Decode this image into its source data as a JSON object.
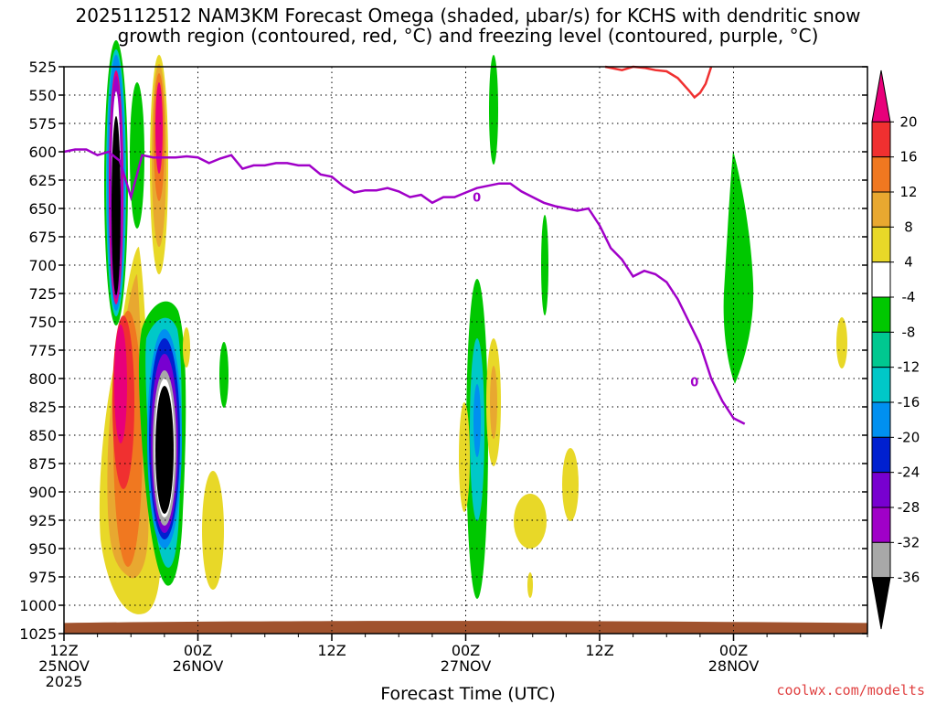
{
  "header": {
    "title_line1": "2025112512 NAM3KM Forecast Omega (shaded, µbar/s) for KCHS with dendritic snow",
    "title_line2": "growth region (contoured, red, °C) and freezing level (contoured, purple, °C)"
  },
  "footer": {
    "xlabel": "Forecast Time (UTC)",
    "credit": "coolwx.com/modelts"
  },
  "chart_data": {
    "type": "heatmap",
    "x_range_hours": [
      0,
      72
    ],
    "x_ticks": [
      {
        "hour": 0,
        "lines": [
          "12Z",
          "25NOV",
          "2025"
        ]
      },
      {
        "hour": 12,
        "lines": [
          "00Z",
          "26NOV"
        ]
      },
      {
        "hour": 24,
        "lines": [
          "12Z"
        ]
      },
      {
        "hour": 36,
        "lines": [
          "00Z",
          "27NOV"
        ]
      },
      {
        "hour": 48,
        "lines": [
          "12Z"
        ]
      },
      {
        "hour": 60,
        "lines": [
          "00Z",
          "28NOV"
        ]
      }
    ],
    "y_range_mb": [
      525,
      1025
    ],
    "y_ticks": [
      525,
      550,
      575,
      600,
      625,
      650,
      675,
      700,
      725,
      750,
      775,
      800,
      825,
      850,
      875,
      900,
      925,
      950,
      975,
      1000,
      1025
    ],
    "grid": true,
    "colorbar": {
      "position": "right",
      "labels": [
        20,
        16,
        12,
        8,
        4,
        -4,
        -8,
        -12,
        -16,
        -20,
        -24,
        -28,
        -32,
        -36
      ],
      "colors": [
        "#e8007a",
        "#f03030",
        "#f07820",
        "#e8a830",
        "#e8d828",
        "#ffffff",
        "#00c800",
        "#00c890",
        "#00c8c8",
        "#0090f0",
        "#0020d0",
        "#7800d0",
        "#a000c8",
        "#a8a8a8",
        "#000000"
      ]
    },
    "freezing_level": {
      "color": "#a000c8",
      "label": "0",
      "points": [
        [
          0,
          600
        ],
        [
          1,
          598
        ],
        [
          2,
          598
        ],
        [
          3,
          603
        ],
        [
          4,
          600
        ],
        [
          5,
          608
        ],
        [
          6,
          640
        ],
        [
          7,
          603
        ],
        [
          8,
          605
        ],
        [
          9,
          605
        ],
        [
          10,
          605
        ],
        [
          11,
          604
        ],
        [
          12,
          605
        ],
        [
          13,
          610
        ],
        [
          14,
          606
        ],
        [
          15,
          603
        ],
        [
          16,
          615
        ],
        [
          17,
          612
        ],
        [
          18,
          612
        ],
        [
          19,
          610
        ],
        [
          20,
          610
        ],
        [
          21,
          612
        ],
        [
          22,
          612
        ],
        [
          23,
          620
        ],
        [
          24,
          622
        ],
        [
          25,
          630
        ],
        [
          26,
          636
        ],
        [
          27,
          634
        ],
        [
          28,
          634
        ],
        [
          29,
          632
        ],
        [
          30,
          635
        ],
        [
          31,
          640
        ],
        [
          32,
          638
        ],
        [
          33,
          645
        ],
        [
          34,
          640
        ],
        [
          35,
          640
        ],
        [
          36,
          636
        ],
        [
          37,
          632
        ],
        [
          38,
          630
        ],
        [
          39,
          628
        ],
        [
          40,
          628
        ],
        [
          41,
          635
        ],
        [
          42,
          640
        ],
        [
          43,
          645
        ],
        [
          44,
          648
        ],
        [
          45,
          650
        ],
        [
          46,
          652
        ],
        [
          47,
          650
        ],
        [
          48,
          665
        ],
        [
          49,
          685
        ],
        [
          50,
          695
        ],
        [
          51,
          710
        ],
        [
          52,
          705
        ],
        [
          53,
          708
        ],
        [
          54,
          715
        ],
        [
          55,
          730
        ],
        [
          56,
          750
        ],
        [
          57,
          770
        ],
        [
          58,
          800
        ],
        [
          59,
          820
        ],
        [
          60,
          835
        ],
        [
          61,
          840
        ]
      ]
    },
    "dgz_contour": {
      "color": "#f03030",
      "points": [
        [
          48.5,
          525
        ],
        [
          50,
          528
        ],
        [
          51,
          525
        ],
        [
          52,
          526
        ],
        [
          53,
          528
        ],
        [
          54,
          529
        ],
        [
          55,
          535
        ],
        [
          56,
          546
        ],
        [
          56.5,
          552
        ],
        [
          57,
          548
        ],
        [
          57.5,
          540
        ],
        [
          58,
          525
        ]
      ]
    },
    "terrain": {
      "color": "#a0522d",
      "top_mb": 1014
    }
  }
}
